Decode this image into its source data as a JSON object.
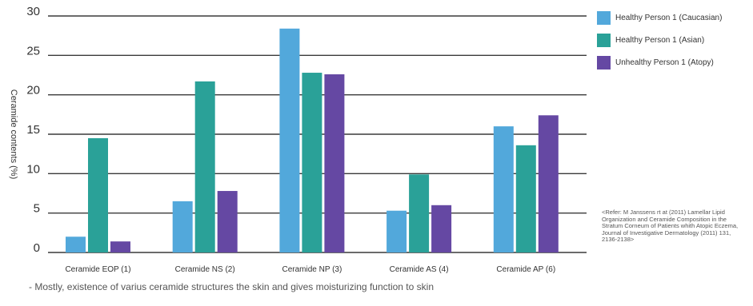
{
  "chart_data": {
    "type": "bar",
    "title": "",
    "xlabel": "",
    "ylabel": "Ceramide contents (%)",
    "ylim": [
      0,
      30
    ],
    "yticks": [
      0,
      5,
      10,
      15,
      20,
      25,
      30
    ],
    "grid": true,
    "legend_position": "top-right",
    "categories": [
      "Ceramide EOP (1)",
      "Ceramide NS (2)",
      "Ceramide NP (3)",
      "Ceramide AS (4)",
      "Ceramide AP (6)"
    ],
    "series": [
      {
        "name": "Healthy Person 1 (Caucasian)",
        "color": "#52a8db",
        "values": [
          2.0,
          6.5,
          28.4,
          5.3,
          16.0
        ]
      },
      {
        "name": "Healthy Person 1 (Asian)",
        "color": "#2aa198",
        "values": [
          14.5,
          21.7,
          22.8,
          9.9,
          13.6
        ]
      },
      {
        "name": "Unhealthy Person 1 (Atopy)",
        "color": "#6548a3",
        "values": [
          1.4,
          7.8,
          22.6,
          6.0,
          17.4
        ]
      }
    ]
  },
  "reference": "<Refer: M Janssens rt at (2011) Lamellar Lipid Organization and Ceramide Composition in the Stratum Corneum of Patients whith Atopic Eczema, Journal of Investigative Dermatology (2011) 131, 2136-2138>",
  "footnote": "- Mostly, existence of varius ceramide structures the skin and gives moisturizing function to skin"
}
